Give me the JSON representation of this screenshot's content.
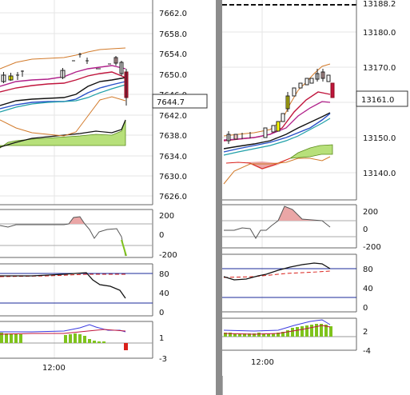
{
  "left_chart": {
    "price_axis": [
      "7662.0",
      "7658.0",
      "7654.0",
      "7650.0",
      "7646.0",
      "7642.0",
      "7638.0",
      "7634.0",
      "7630.0",
      "7626.0"
    ],
    "current_price": "7644.7",
    "osc1_axis": [
      "200",
      "0",
      "-200"
    ],
    "osc2_axis": [
      "80",
      "40",
      "0"
    ],
    "osc3_axis": [
      "1",
      "-3"
    ],
    "time_label": "12:00"
  },
  "right_chart": {
    "top_label": "13188.2",
    "price_axis": [
      "13180.0",
      "13170.0",
      "13150.0",
      "13140.0"
    ],
    "current_price": "13161.0",
    "osc1_axis": [
      "200",
      "0",
      "-200"
    ],
    "osc2_axis": [
      "80",
      "40",
      "0"
    ],
    "osc3_axis": [
      "2",
      "-4"
    ],
    "time_label": "12:00"
  },
  "colors": {
    "background": "#ffffff",
    "grid": "#e6e6e6",
    "divider": "#8c8c8c",
    "histogram_green": "#7fc31c",
    "histogram_red": "#d9201a",
    "area_green": "#b7e07a",
    "area_red": "#eaa6a6",
    "band_orange": "#d27a2a",
    "line_red": "#c0143c",
    "line_black": "#111111",
    "line_blue": "#2850c8",
    "line_teal": "#20a0a8",
    "line_magenta": "#b0208a"
  }
}
